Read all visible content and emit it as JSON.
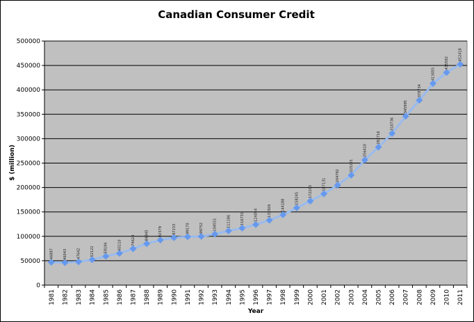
{
  "chart_data": {
    "type": "line",
    "title": "Canadian Consumer Credit",
    "xlabel": "Year",
    "ylabel": "$ (million)",
    "ylim": [
      0,
      500000
    ],
    "yticks": [
      0,
      50000,
      100000,
      150000,
      200000,
      250000,
      300000,
      350000,
      400000,
      450000,
      500000
    ],
    "grid": true,
    "legend": "none",
    "colors": {
      "plot_bg": "#c0c0c0",
      "line": "#99bbee",
      "marker": "#6699ee",
      "gridline": "#000000"
    },
    "categories": [
      "1981",
      "1982",
      "1983",
      "1984",
      "1985",
      "1986",
      "1987",
      "1988",
      "1989",
      "1990",
      "1991",
      "1992",
      "1993",
      "1994",
      "1995",
      "1996",
      "1997",
      "1998",
      "1999",
      "2000",
      "2001",
      "2002",
      "2003",
      "2004",
      "2005",
      "2006",
      "2007",
      "2008",
      "2009",
      "2010",
      "2011"
    ],
    "series": [
      {
        "values": [
          46887,
          46043,
          47642,
          52122,
          59194,
          65110,
          74624,
          84945,
          92379,
          97233,
          99170,
          99752,
          104551,
          111186,
          116731,
          124054,
          132926,
          144188,
          158245,
          172203,
          187131,
          204792,
          225221,
          256410,
          282716,
          310736,
          345995,
          378734,
          413055,
          435592,
          452418
        ],
        "labels": [
          "46887",
          "46043",
          "47642",
          "52122",
          "59194",
          "65110",
          "74624",
          "84945",
          "92379",
          "97233",
          "99170",
          "99752",
          "104551",
          "111186",
          "116731",
          "124054",
          "132926",
          "144188",
          "158245",
          "172203",
          "187131",
          "204792",
          "225221",
          "256410",
          "282716",
          "310736",
          "345995",
          "378734",
          "413055",
          "435592",
          "452418"
        ]
      }
    ]
  }
}
